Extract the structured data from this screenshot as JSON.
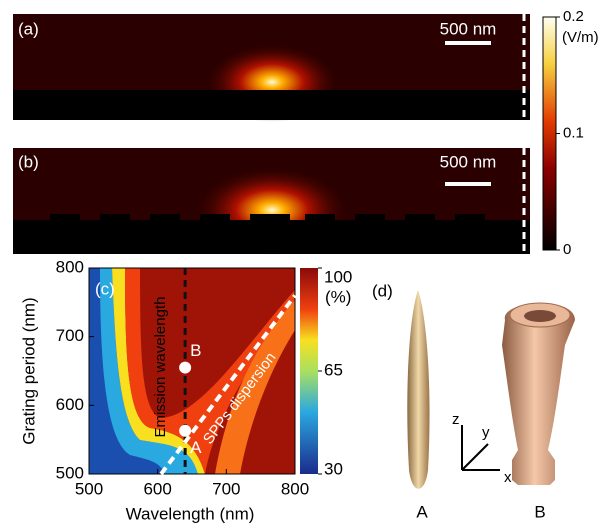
{
  "panel_a": {
    "label": "(a)",
    "scale_bar": "500 nm"
  },
  "panel_b": {
    "label": "(b)",
    "scale_bar": "500 nm"
  },
  "field_colorbar": {
    "unit": "(V/m)",
    "lim": [
      0,
      0.2
    ],
    "ticks": [
      0,
      0.1,
      0.2
    ]
  },
  "chart_data": {
    "type": "heatmap",
    "label": "(c)",
    "x_label": "Wavelength (nm)",
    "y_label": "Grating period (nm)",
    "xlim": [
      500,
      800
    ],
    "ylim": [
      500,
      800
    ],
    "xticks": [
      500,
      600,
      700,
      800
    ],
    "yticks": [
      500,
      600,
      700,
      800
    ],
    "colorbar": {
      "unit": "(%)",
      "lim": [
        30,
        100
      ],
      "ticks": [
        30,
        65,
        100
      ]
    },
    "emission_wavelength": {
      "label": "Emission wavelength",
      "x": 640
    },
    "spp_dispersion": {
      "label": "SPPs dispersion",
      "x": [
        605,
        800
      ],
      "y": [
        500,
        760
      ]
    },
    "points": [
      {
        "label": "A",
        "x": 640,
        "y": 563
      },
      {
        "label": "B",
        "x": 640,
        "y": 655
      }
    ]
  },
  "panel_d": {
    "label": "(d)",
    "axes": [
      "x",
      "y",
      "z"
    ],
    "shape_labels": [
      "A",
      "B"
    ]
  }
}
